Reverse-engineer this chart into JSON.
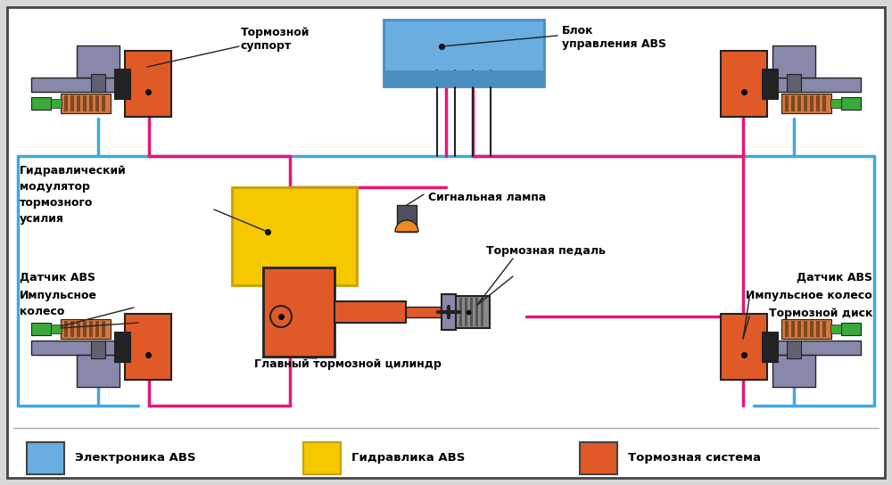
{
  "bg_color": "#d8d8d8",
  "inner_bg": "#f0f0f0",
  "border_color": "#444444",
  "blue_color": "#6aade0",
  "blue_dark": "#4a8fc0",
  "yellow_color": "#f5c800",
  "yellow_border": "#c8a000",
  "orange_color": "#e05a28",
  "green_color": "#3aaa3a",
  "gray_color": "#8888aa",
  "gray_dark": "#555566",
  "dark_color": "#333333",
  "pink_line": "#e8157a",
  "blue_line": "#40a8e0",
  "black_line": "#222222",
  "legend_items": [
    {
      "color": "#6aade0",
      "border": "#444444",
      "label": "Электроника ABS"
    },
    {
      "color": "#f5c800",
      "border": "#c8a000",
      "label": "Гидравлика ABS"
    },
    {
      "color": "#e05a28",
      "border": "#444444",
      "label": "Тормозная система"
    }
  ],
  "labels": {
    "tormosnoy_support": "Тормозной\nсуппорт",
    "blok_upravleniya": "Блок\nуправления ABS",
    "gidravlicheskiy": "Гидравлический\nмодулятор\nтормозного\nусилия",
    "datchik_abs_left": "Датчик ABS",
    "impulsnoye_kol_left": "Импульсное\nколесо",
    "signalnaya_lampa": "Сигнальная лампа",
    "tormoznaya_pedal": "Тормозная педаль",
    "glavny_tsilindr": "Главный тормозной цилиндр",
    "datchik_abs_right": "Датчик ABS",
    "impulsnoye_kol_right": "Импульсное колесо",
    "tormoznoy_disk": "Тормозной диск"
  }
}
